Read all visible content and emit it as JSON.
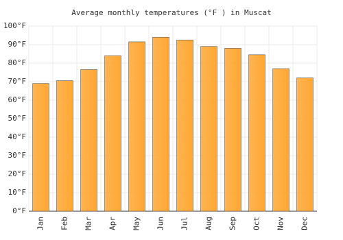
{
  "chart_data": {
    "type": "bar",
    "title": "Average monthly temperatures (°F ) in Muscat",
    "categories": [
      "Jan",
      "Feb",
      "Mar",
      "Apr",
      "May",
      "Jun",
      "Jul",
      "Aug",
      "Sep",
      "Oct",
      "Nov",
      "Dec"
    ],
    "values": [
      69,
      70.5,
      76.5,
      84,
      91.5,
      94,
      92.5,
      89,
      88,
      84.5,
      77,
      72
    ],
    "color": "#ffa733",
    "ylim": [
      0,
      100
    ],
    "yticks": [
      {
        "value": 0,
        "label": "0°F"
      },
      {
        "value": 10,
        "label": "10°F"
      },
      {
        "value": 20,
        "label": "20°F"
      },
      {
        "value": 30,
        "label": "30°F"
      },
      {
        "value": 40,
        "label": "40°F"
      },
      {
        "value": 50,
        "label": "50°F"
      },
      {
        "value": 60,
        "label": "60°F"
      },
      {
        "value": 70,
        "label": "70°F"
      },
      {
        "value": 80,
        "label": "80°F"
      },
      {
        "value": 90,
        "label": "90°F"
      },
      {
        "value": 100,
        "label": "100°F"
      }
    ],
    "grid": true
  }
}
